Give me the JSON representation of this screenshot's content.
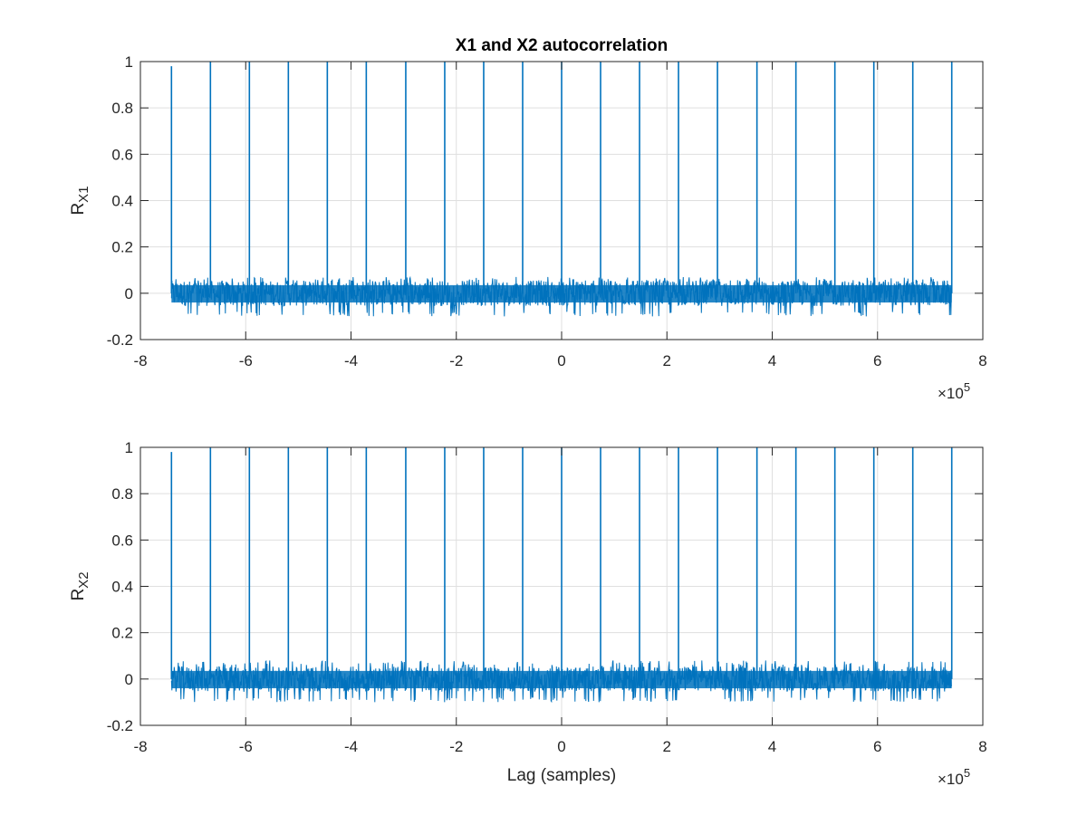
{
  "figure": {
    "title": "X1 and X2 autocorrelation",
    "line_color": "#0072bd"
  },
  "chart_data": [
    {
      "type": "line",
      "title": "X1 and X2 autocorrelation",
      "ylabel": {
        "base": "R",
        "sub": "X1"
      },
      "xlabel": "",
      "xlim": [
        -8,
        8
      ],
      "ylim": [
        -0.2,
        1
      ],
      "x_exponent": {
        "times": "×10",
        "power": "5"
      },
      "grid": true,
      "x_ticks": [
        -8,
        -6,
        -4,
        -2,
        0,
        2,
        4,
        6,
        8
      ],
      "x_tick_labels": [
        "-8",
        "-6",
        "-4",
        "-2",
        "0",
        "2",
        "4",
        "6",
        "8"
      ],
      "y_ticks": [
        -0.2,
        0,
        0.2,
        0.4,
        0.6,
        0.8,
        1
      ],
      "y_tick_labels": [
        "-0.2",
        "0",
        "0.2",
        "0.4",
        "0.6",
        "0.8",
        "1"
      ],
      "series": [
        {
          "peaks_x": [
            -7.41,
            -6.67,
            -5.93,
            -5.19,
            -4.45,
            -3.71,
            -2.96,
            -2.22,
            -1.48,
            -0.74,
            0,
            0.74,
            1.48,
            2.22,
            2.96,
            3.71,
            4.45,
            5.19,
            5.93,
            6.67,
            7.41
          ],
          "peaks_y": [
            0.98,
            1,
            1,
            1,
            1,
            1,
            1,
            1,
            1,
            1,
            1,
            1,
            1,
            1,
            1,
            1,
            1,
            1,
            1,
            1,
            1
          ],
          "noise_x_range": [
            -7.41,
            7.41
          ],
          "noise_band": [
            -0.1,
            0.07
          ]
        }
      ]
    },
    {
      "type": "line",
      "ylabel": {
        "base": "R",
        "sub": "X2"
      },
      "xlabel": "Lag (samples)",
      "xlim": [
        -8,
        8
      ],
      "ylim": [
        -0.2,
        1
      ],
      "x_exponent": {
        "times": "×10",
        "power": "5"
      },
      "grid": true,
      "x_ticks": [
        -8,
        -6,
        -4,
        -2,
        0,
        2,
        4,
        6,
        8
      ],
      "x_tick_labels": [
        "-8",
        "-6",
        "-4",
        "-2",
        "0",
        "2",
        "4",
        "6",
        "8"
      ],
      "y_ticks": [
        -0.2,
        0,
        0.2,
        0.4,
        0.6,
        0.8,
        1
      ],
      "y_tick_labels": [
        "-0.2",
        "0",
        "0.2",
        "0.4",
        "0.6",
        "0.8",
        "1"
      ],
      "series": [
        {
          "peaks_x": [
            -7.41,
            -6.67,
            -5.93,
            -5.19,
            -4.45,
            -3.71,
            -2.96,
            -2.22,
            -1.48,
            -0.74,
            0,
            0.74,
            1.48,
            2.22,
            2.96,
            3.71,
            4.45,
            5.19,
            5.93,
            6.67,
            7.41
          ],
          "peaks_y": [
            0.98,
            1,
            1,
            1,
            1,
            1,
            1,
            1,
            1,
            1,
            1,
            1,
            1,
            1,
            1,
            1,
            1,
            1,
            1,
            1,
            1
          ],
          "noise_x_range": [
            -7.41,
            7.41
          ],
          "noise_band": [
            -0.1,
            0.08
          ]
        }
      ]
    }
  ]
}
